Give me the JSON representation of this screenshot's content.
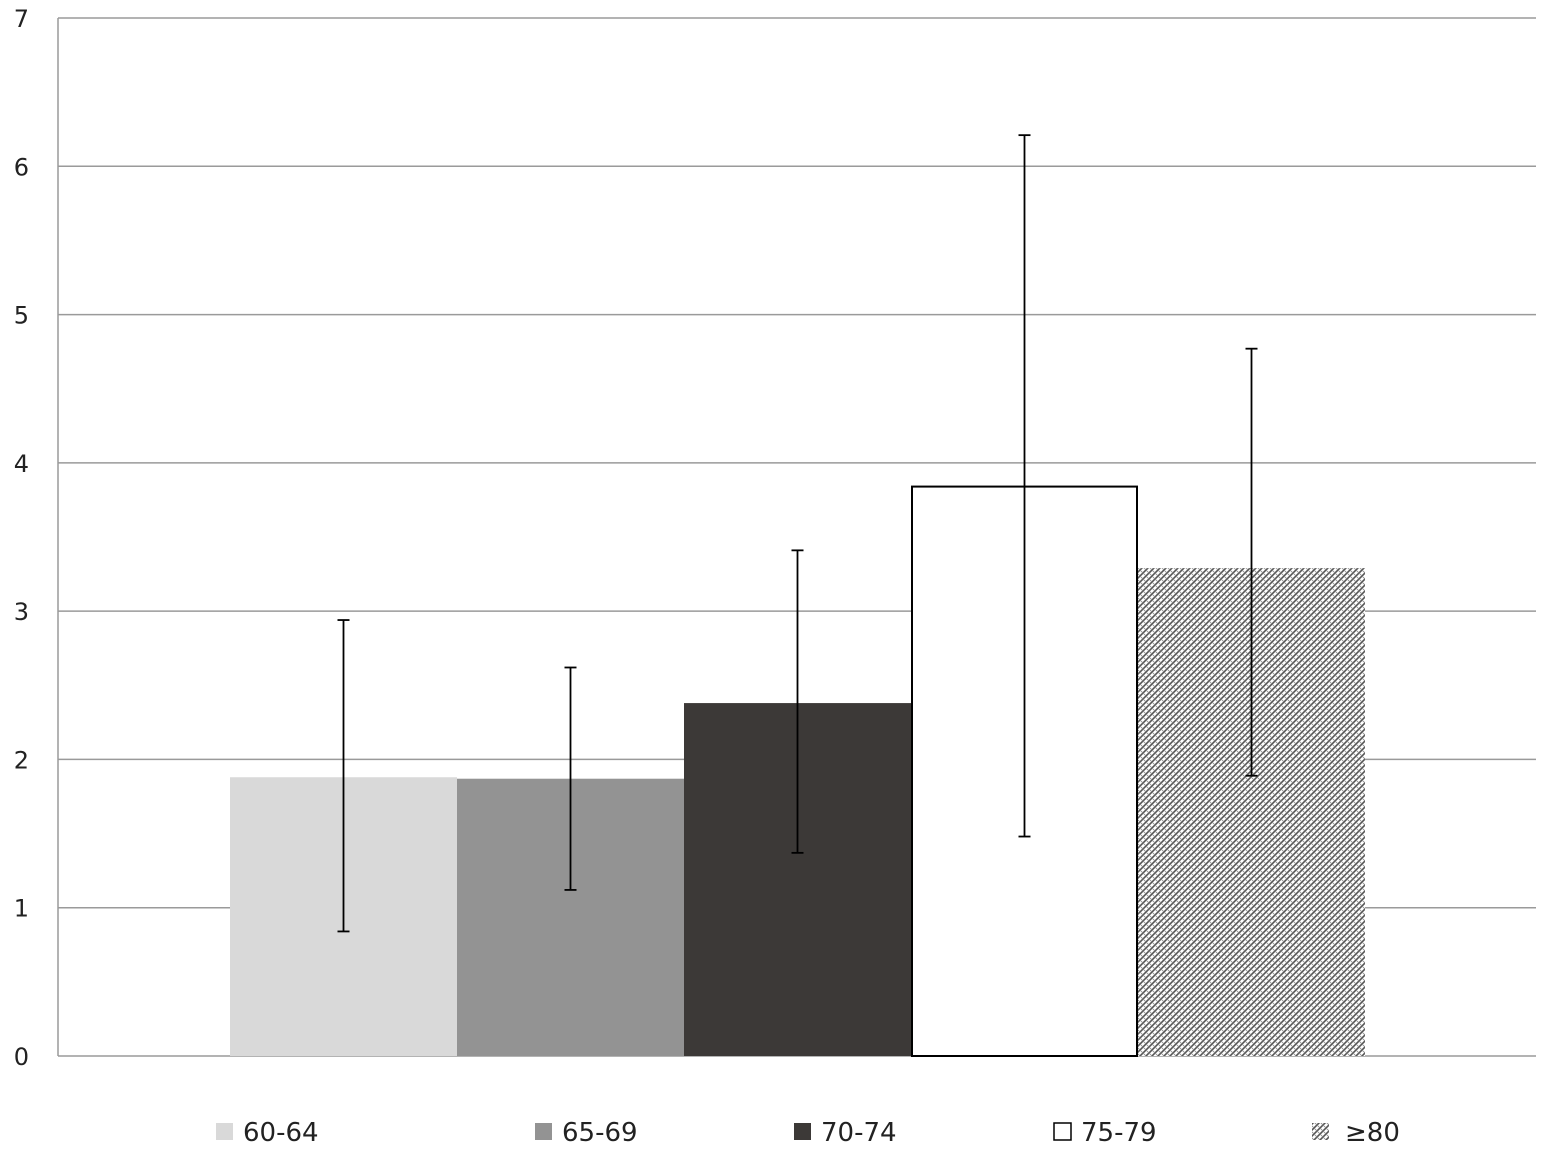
{
  "chart_data": {
    "type": "bar",
    "title": "",
    "xlabel": "",
    "ylabel": "",
    "ylim": [
      0,
      7
    ],
    "yticks": [
      0,
      1,
      2,
      3,
      4,
      5,
      6,
      7
    ],
    "grid": true,
    "legend_position": "bottom",
    "series": [
      {
        "name": "60-64",
        "value": 1.88,
        "error_low": 0.84,
        "error_high": 2.94,
        "color": "#d9d9d9",
        "pattern": "solid"
      },
      {
        "name": "65-69",
        "value": 1.87,
        "error_low": 1.12,
        "error_high": 2.62,
        "color": "#939393",
        "pattern": "solid"
      },
      {
        "name": "70-74",
        "value": 2.38,
        "error_low": 1.37,
        "error_high": 3.41,
        "color": "#3c3937",
        "pattern": "solid"
      },
      {
        "name": "75-79",
        "value": 3.84,
        "error_low": 1.48,
        "error_high": 6.21,
        "color": "#ffffff",
        "pattern": "outline"
      },
      {
        "name": "≥80",
        "value": 3.29,
        "error_low": 1.89,
        "error_high": 4.77,
        "color": "#555555",
        "pattern": "hatch"
      }
    ]
  }
}
